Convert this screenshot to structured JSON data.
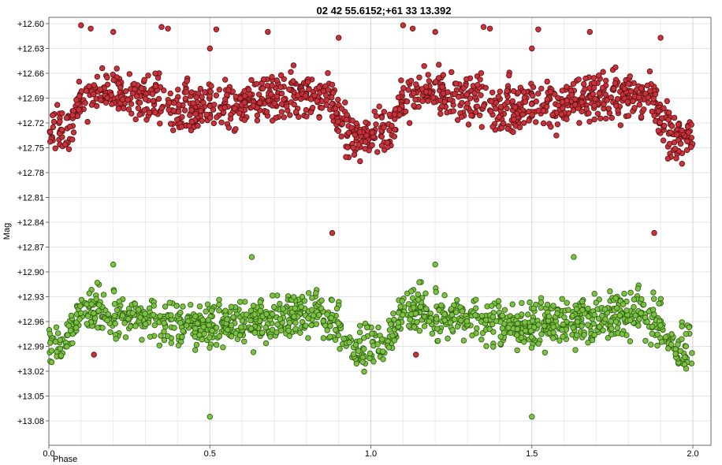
{
  "chart_data": {
    "type": "scatter",
    "title": "02 42 55.6152;+61 33 13.392",
    "xlabel": "Phase",
    "ylabel": "Mag",
    "xlim": [
      0.0,
      2.0
    ],
    "ylim": [
      12.6,
      13.1
    ],
    "y_inverted": true,
    "grid": true,
    "x_ticks": [
      0.0,
      0.5,
      1.0,
      1.5,
      2.0
    ],
    "x_tick_labels": [
      "0.0",
      "0.5",
      "1.0",
      "1.5",
      "2.0"
    ],
    "y_ticks": [
      12.6,
      12.63,
      12.66,
      12.69,
      12.72,
      12.75,
      12.78,
      12.81,
      12.84,
      12.87,
      12.9,
      12.93,
      12.96,
      12.99,
      13.02,
      13.05,
      13.08
    ],
    "y_tick_labels": [
      "+12.60",
      "+12.63",
      "+12.66",
      "+12.69",
      "+12.72",
      "+12.75",
      "+12.78",
      "+12.81",
      "+12.84",
      "+12.87",
      "+12.90",
      "+12.93",
      "+12.96",
      "+12.99",
      "+13.02",
      "+13.05",
      "+13.08"
    ],
    "series": [
      {
        "color": "#c8323c",
        "marker_edge": "#5a1010",
        "light_curve": [
          {
            "phase": 0.0,
            "mag": 12.735
          },
          {
            "phase": 0.05,
            "mag": 12.735
          },
          {
            "phase": 0.1,
            "mag": 12.69
          },
          {
            "phase": 0.2,
            "mag": 12.683
          },
          {
            "phase": 0.3,
            "mag": 12.69
          },
          {
            "phase": 0.4,
            "mag": 12.7
          },
          {
            "phase": 0.5,
            "mag": 12.703
          },
          {
            "phase": 0.6,
            "mag": 12.697
          },
          {
            "phase": 0.7,
            "mag": 12.688
          },
          {
            "phase": 0.8,
            "mag": 12.686
          },
          {
            "phase": 0.88,
            "mag": 12.693
          },
          {
            "phase": 0.91,
            "mag": 12.715
          },
          {
            "phase": 0.93,
            "mag": 12.738
          },
          {
            "phase": 1.0,
            "mag": 12.735
          }
        ],
        "scatter_mag": 0.013,
        "outliers": [
          {
            "phase": 0.1,
            "mag": 12.602
          },
          {
            "phase": 0.13,
            "mag": 12.606
          },
          {
            "phase": 0.2,
            "mag": 12.61
          },
          {
            "phase": 0.35,
            "mag": 12.604
          },
          {
            "phase": 0.37,
            "mag": 12.606
          },
          {
            "phase": 0.5,
            "mag": 12.63
          },
          {
            "phase": 0.52,
            "mag": 12.607
          },
          {
            "phase": 0.68,
            "mag": 12.61
          },
          {
            "phase": 0.9,
            "mag": 12.617
          },
          {
            "phase": 0.88,
            "mag": 12.853
          },
          {
            "phase": 0.14,
            "mag": 13.0
          }
        ]
      },
      {
        "color": "#7cc142",
        "marker_edge": "#2a5a10",
        "light_curve": [
          {
            "phase": 0.0,
            "mag": 12.99
          },
          {
            "phase": 0.05,
            "mag": 12.99
          },
          {
            "phase": 0.1,
            "mag": 12.95
          },
          {
            "phase": 0.2,
            "mag": 12.95
          },
          {
            "phase": 0.3,
            "mag": 12.955
          },
          {
            "phase": 0.4,
            "mag": 12.962
          },
          {
            "phase": 0.5,
            "mag": 12.965
          },
          {
            "phase": 0.6,
            "mag": 12.962
          },
          {
            "phase": 0.7,
            "mag": 12.955
          },
          {
            "phase": 0.8,
            "mag": 12.95
          },
          {
            "phase": 0.88,
            "mag": 12.955
          },
          {
            "phase": 0.91,
            "mag": 12.97
          },
          {
            "phase": 0.93,
            "mag": 12.995
          },
          {
            "phase": 1.0,
            "mag": 12.99
          }
        ],
        "scatter_mag": 0.013,
        "outliers": [
          {
            "phase": 0.2,
            "mag": 12.891
          },
          {
            "phase": 0.63,
            "mag": 12.882
          },
          {
            "phase": 0.5,
            "mag": 13.075
          }
        ]
      }
    ]
  }
}
